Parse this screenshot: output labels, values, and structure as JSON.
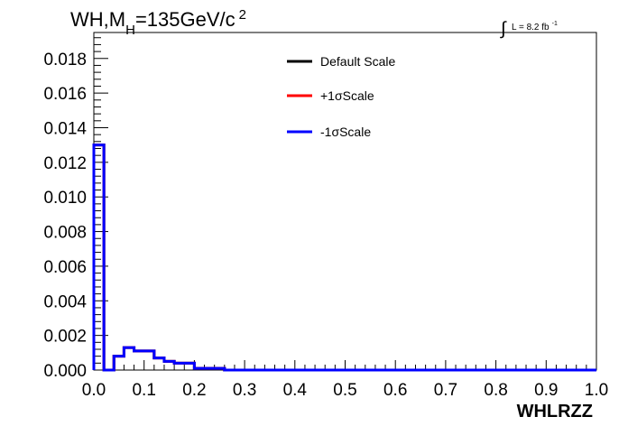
{
  "chart_data": {
    "type": "line",
    "title_main": "WH,M",
    "title_sub": "H",
    "title_rest": "=135GeV/c",
    "title_sup": "2",
    "lumi_symbol": "∫",
    "lumi_text": "L = 8.2 fb",
    "lumi_sup": "-1",
    "xlabel": "WHLRZZ",
    "ylabel": "",
    "xlim": [
      0.0,
      1.0
    ],
    "ylim": [
      0.0,
      0.0195
    ],
    "x_ticks": [
      "0.0",
      "0.1",
      "0.2",
      "0.3",
      "0.4",
      "0.5",
      "0.6",
      "0.7",
      "0.8",
      "0.9",
      "1.0"
    ],
    "y_ticks": [
      "0.000",
      "0.002",
      "0.004",
      "0.006",
      "0.008",
      "0.010",
      "0.012",
      "0.014",
      "0.016",
      "0.018"
    ],
    "bin_edges": [
      0.0,
      0.02,
      0.04,
      0.06,
      0.08,
      0.1,
      0.12,
      0.14,
      0.16,
      0.18,
      0.2,
      0.22,
      0.24,
      0.26,
      1.0
    ],
    "series": [
      {
        "name": "Default Scale",
        "color": "#000000",
        "values": [
          0.013,
          0.0,
          0.0008,
          0.0013,
          0.0011,
          0.0011,
          0.0007,
          0.0005,
          0.0004,
          0.0004,
          0.0001,
          0.0001,
          0.0001,
          0.0
        ]
      },
      {
        "name": "+1σScale",
        "color": "#ff0000",
        "values": [
          0.013,
          0.0,
          0.0008,
          0.0013,
          0.0011,
          0.0011,
          0.0007,
          0.0005,
          0.0004,
          0.0004,
          0.0001,
          0.0001,
          0.0001,
          0.0
        ]
      },
      {
        "name": "-1σScale",
        "color": "#0000ff",
        "values": [
          0.013,
          0.0,
          0.0008,
          0.0013,
          0.0011,
          0.0011,
          0.0007,
          0.0005,
          0.0004,
          0.0004,
          0.0001,
          0.0001,
          0.0001,
          0.0
        ]
      }
    ],
    "legend_position": "top-center",
    "grid": false
  }
}
